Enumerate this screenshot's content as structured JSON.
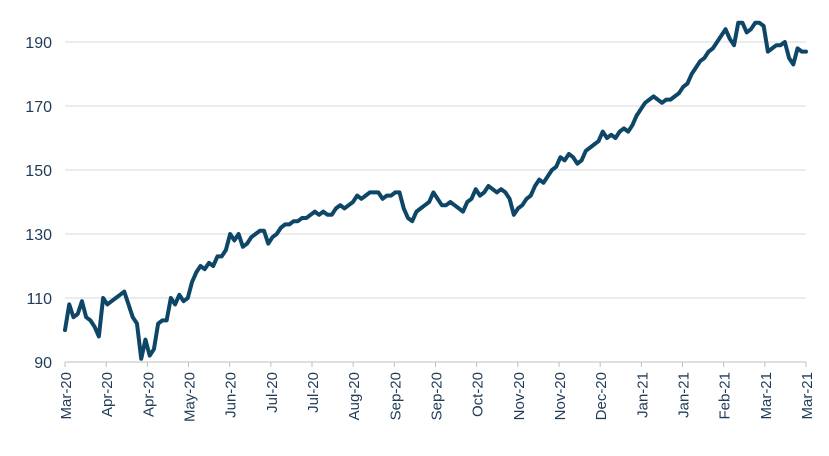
{
  "chart_data": {
    "type": "line",
    "title": "",
    "xlabel": "",
    "ylabel": "",
    "ylim": [
      90,
      200
    ],
    "yticks": [
      90,
      110,
      130,
      150,
      170,
      190
    ],
    "x_tick_labels": [
      "Mar-20",
      "Apr-20",
      "Apr-20",
      "May-20",
      "Jun-20",
      "Jul-20",
      "Jul-20",
      "Aug-20",
      "Sep-20",
      "Sep-20",
      "Oct-20",
      "Nov-20",
      "Nov-20",
      "Dec-20",
      "Jan-21",
      "Jan-21",
      "Feb-21",
      "Mar-21",
      "Mar-21"
    ],
    "grid": true,
    "line_color": "#0e4668",
    "series": [
      {
        "values": [
          100,
          108,
          104,
          105,
          109,
          104,
          103,
          101,
          98,
          110,
          108,
          109,
          110,
          111,
          112,
          108,
          104,
          102,
          91,
          97,
          92,
          94,
          102,
          103,
          103,
          110,
          108,
          111,
          109,
          110,
          115,
          118,
          120,
          119,
          121,
          120,
          123,
          123,
          125,
          130,
          128,
          130,
          126,
          127,
          129,
          130,
          131,
          131,
          127,
          129,
          130,
          132,
          133,
          133,
          134,
          134,
          135,
          135,
          136,
          137,
          136,
          137,
          136,
          136,
          138,
          139,
          138,
          139,
          140,
          142,
          141,
          142,
          143,
          143,
          143,
          141,
          142,
          142,
          143,
          143,
          138,
          135,
          134,
          137,
          138,
          139,
          140,
          143,
          141,
          139,
          139,
          140,
          139,
          138,
          137,
          140,
          141,
          144,
          142,
          143,
          145,
          144,
          143,
          144,
          143,
          141,
          136,
          138,
          139,
          141,
          142,
          145,
          147,
          146,
          148,
          150,
          151,
          154,
          153,
          155,
          154,
          152,
          153,
          156,
          157,
          158,
          159,
          162,
          160,
          161,
          160,
          162,
          163,
          162,
          164,
          167,
          169,
          171,
          172,
          173,
          172,
          171,
          172,
          172,
          173,
          174,
          176,
          177,
          180,
          182,
          184,
          185,
          187,
          188,
          190,
          192,
          194,
          191,
          189,
          196,
          196,
          193,
          194,
          196,
          196,
          195,
          187,
          188,
          189,
          189,
          190,
          185,
          183,
          188,
          187,
          187
        ]
      }
    ]
  }
}
